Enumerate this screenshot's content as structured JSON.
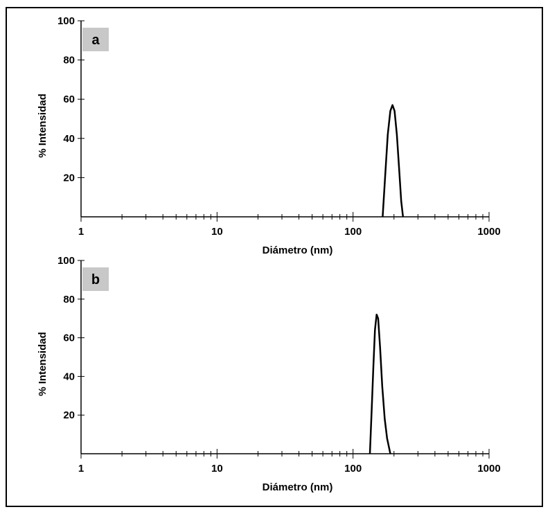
{
  "chart_data": [
    {
      "type": "line",
      "panel_label": "a",
      "xlabel": "Diámetro (nm)",
      "ylabel": "% Intensidad",
      "x_scale": "log",
      "xlim": [
        1,
        1000
      ],
      "ylim": [
        0,
        100
      ],
      "x_ticks": [
        1,
        10,
        100,
        1000
      ],
      "y_ticks": [
        20,
        40,
        60,
        80,
        100
      ],
      "series": [
        {
          "x": [
            165,
            172,
            180,
            188,
            195,
            202,
            210,
            218,
            226,
            233
          ],
          "y": [
            0,
            20,
            42,
            54,
            57,
            54,
            42,
            25,
            8,
            0
          ]
        }
      ]
    },
    {
      "type": "line",
      "panel_label": "b",
      "xlabel": "Diámetro (nm)",
      "ylabel": "% Intensidad",
      "x_scale": "log",
      "xlim": [
        1,
        1000
      ],
      "ylim": [
        0,
        100
      ],
      "x_ticks": [
        1,
        10,
        100,
        1000
      ],
      "y_ticks": [
        20,
        40,
        60,
        80,
        100
      ],
      "series": [
        {
          "x": [
            133,
            137,
            141,
            145,
            149,
            153,
            158,
            164,
            171,
            178,
            188
          ],
          "y": [
            0,
            22,
            45,
            64,
            72,
            70,
            55,
            35,
            18,
            8,
            0
          ]
        }
      ]
    }
  ]
}
